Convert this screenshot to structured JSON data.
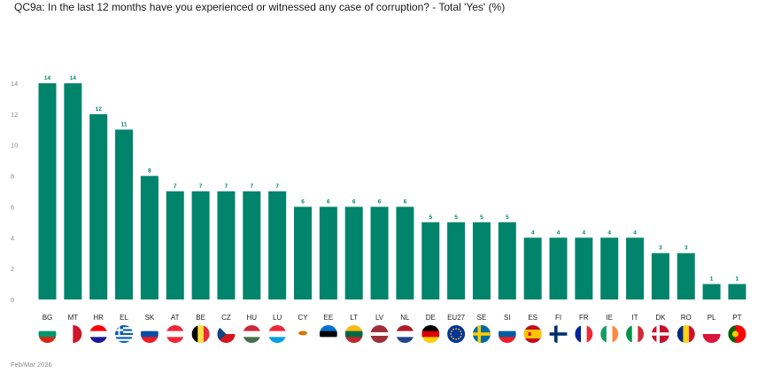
{
  "title": "QC9a: In the last 12 months have you experienced or witnessed any case of corruption? - Total 'Yes' (%)",
  "footnote": "Feb/Mar 2026",
  "colors": {
    "bar": "#00846b",
    "label": "#00846b",
    "tick": "#8a8a8a"
  },
  "chart_data": {
    "type": "bar",
    "title": "QC9a: In the last 12 months have you experienced or witnessed any case of corruption? - Total 'Yes' (%)",
    "xlabel": "",
    "ylabel": "",
    "ylim": [
      0,
      14
    ],
    "yticks": [
      0,
      2,
      4,
      6,
      8,
      10,
      12,
      14
    ],
    "grid": false,
    "categories": [
      "BG",
      "MT",
      "HR",
      "EL",
      "SK",
      "AT",
      "BE",
      "CZ",
      "HU",
      "LU",
      "CY",
      "EE",
      "LT",
      "LV",
      "NL",
      "DE",
      "EU27",
      "SE",
      "SI",
      "ES",
      "FI",
      "FR",
      "IE",
      "IT",
      "DK",
      "RO",
      "PL",
      "PT"
    ],
    "values": [
      14,
      14,
      12,
      11,
      8,
      7,
      7,
      7,
      7,
      7,
      6,
      6,
      6,
      6,
      6,
      5,
      5,
      5,
      5,
      4,
      4,
      4,
      4,
      4,
      3,
      3,
      1,
      1
    ],
    "flags": [
      {
        "code": "BG",
        "kind": "h",
        "colors": [
          "#ffffff",
          "#00966e",
          "#d62612"
        ]
      },
      {
        "code": "MT",
        "kind": "v",
        "colors": [
          "#ffffff",
          "#cf142b"
        ]
      },
      {
        "code": "HR",
        "kind": "h",
        "colors": [
          "#ff0000",
          "#ffffff",
          "#171796"
        ]
      },
      {
        "code": "EL",
        "kind": "greece",
        "colors": [
          "#0d5eaf",
          "#ffffff"
        ]
      },
      {
        "code": "SK",
        "kind": "h",
        "colors": [
          "#ffffff",
          "#0b4ea2",
          "#ee1c25"
        ]
      },
      {
        "code": "AT",
        "kind": "h",
        "colors": [
          "#ed2939",
          "#ffffff",
          "#ed2939"
        ]
      },
      {
        "code": "BE",
        "kind": "v",
        "colors": [
          "#000000",
          "#fae042",
          "#ed2939"
        ]
      },
      {
        "code": "CZ",
        "kind": "cz",
        "colors": [
          "#ffffff",
          "#d7141a",
          "#11457e"
        ]
      },
      {
        "code": "HU",
        "kind": "h",
        "colors": [
          "#cd2a3e",
          "#ffffff",
          "#436f4d"
        ]
      },
      {
        "code": "LU",
        "kind": "h",
        "colors": [
          "#ed2939",
          "#ffffff",
          "#00a1de"
        ]
      },
      {
        "code": "CY",
        "kind": "cy",
        "colors": [
          "#ffffff",
          "#d57800"
        ]
      },
      {
        "code": "EE",
        "kind": "h",
        "colors": [
          "#0072ce",
          "#000000",
          "#ffffff"
        ]
      },
      {
        "code": "LT",
        "kind": "h",
        "colors": [
          "#fdb913",
          "#006a44",
          "#c1272d"
        ]
      },
      {
        "code": "LV",
        "kind": "lv",
        "colors": [
          "#9e3039",
          "#ffffff"
        ]
      },
      {
        "code": "NL",
        "kind": "h",
        "colors": [
          "#ae1c28",
          "#ffffff",
          "#21468b"
        ]
      },
      {
        "code": "DE",
        "kind": "h",
        "colors": [
          "#000000",
          "#dd0000",
          "#ffce00"
        ]
      },
      {
        "code": "EU27",
        "kind": "eu",
        "colors": [
          "#003399",
          "#ffcc00"
        ]
      },
      {
        "code": "SE",
        "kind": "nordic",
        "colors": [
          "#006aa7",
          "#fecc00"
        ]
      },
      {
        "code": "SI",
        "kind": "h",
        "colors": [
          "#ffffff",
          "#005da4",
          "#ed1c24"
        ]
      },
      {
        "code": "ES",
        "kind": "es",
        "colors": [
          "#c60b1e",
          "#ffc400"
        ]
      },
      {
        "code": "FI",
        "kind": "nordic",
        "colors": [
          "#ffffff",
          "#002f6c"
        ]
      },
      {
        "code": "FR",
        "kind": "v",
        "colors": [
          "#002395",
          "#ffffff",
          "#ed2939"
        ]
      },
      {
        "code": "IE",
        "kind": "v",
        "colors": [
          "#169b62",
          "#ffffff",
          "#ff883e"
        ]
      },
      {
        "code": "IT",
        "kind": "v",
        "colors": [
          "#009246",
          "#ffffff",
          "#ce2b37"
        ]
      },
      {
        "code": "DK",
        "kind": "nordic",
        "colors": [
          "#c8102e",
          "#ffffff"
        ]
      },
      {
        "code": "RO",
        "kind": "v",
        "colors": [
          "#002b7f",
          "#fcd116",
          "#ce1126"
        ]
      },
      {
        "code": "PL",
        "kind": "h2",
        "colors": [
          "#ffffff",
          "#dc143c"
        ]
      },
      {
        "code": "PT",
        "kind": "pt",
        "colors": [
          "#006600",
          "#ff0000",
          "#ffcc00"
        ]
      }
    ]
  }
}
